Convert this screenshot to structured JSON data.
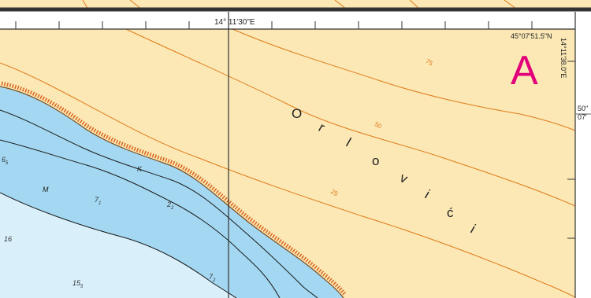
{
  "map": {
    "top_longitude_label": "14° 11'30\"E",
    "corner_coordinate": "45°07'51.5\"N",
    "side_coordinate": "14°11'38.0\"E",
    "chart_letter": "A",
    "right_margin_label_1": "50\"",
    "right_margin_label_2": "07'",
    "place_name": [
      "O",
      "r",
      "l",
      "o",
      "v",
      "i",
      "ć",
      "i"
    ],
    "contour_labels": [
      "75",
      "50",
      "25"
    ],
    "seabed_letters": [
      "K",
      "M"
    ],
    "soundings": [
      {
        "main": "6",
        "sub": "5"
      },
      {
        "main": "7",
        "sub": "1"
      },
      {
        "main": "2",
        "sub": "2"
      },
      {
        "main": "16",
        "sub": ""
      },
      {
        "main": "15",
        "sub": "5"
      },
      {
        "main": "7",
        "sub": "2"
      }
    ],
    "colors": {
      "land": "#fbe8b5",
      "shallow_water": "#a4d8f2",
      "deep_water": "#d9f0fb",
      "contour": "#e07b18",
      "coast_hatch": "#d9621a",
      "chart_letter": "#e2007a",
      "frame": "#333333"
    }
  }
}
